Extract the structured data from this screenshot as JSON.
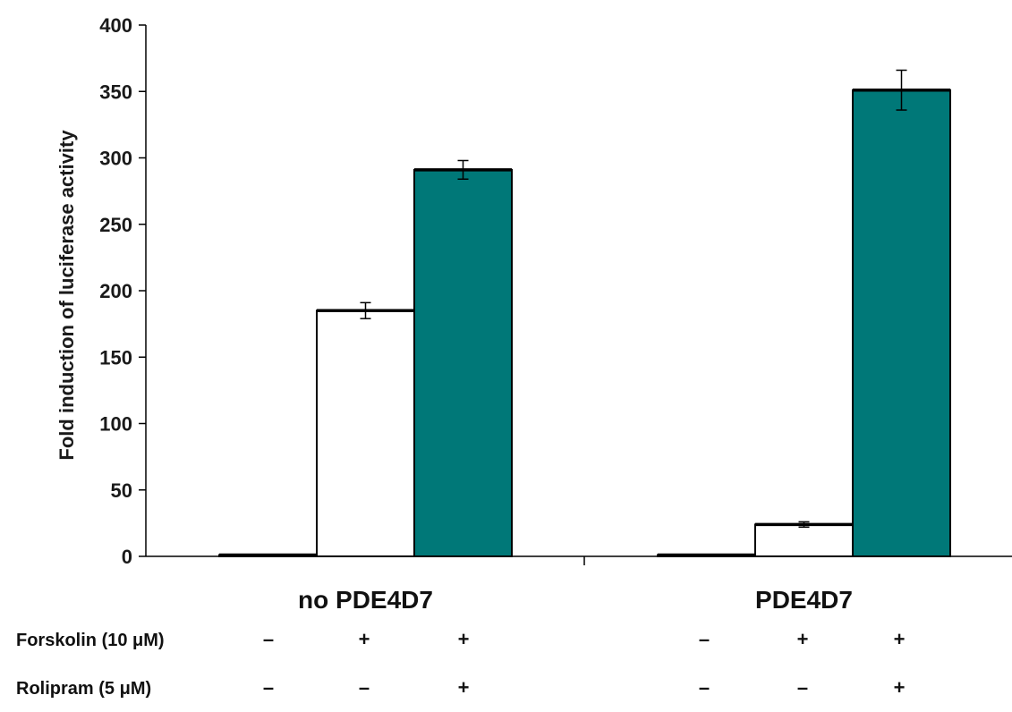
{
  "chart_data": {
    "type": "bar",
    "ylabel": "Fold induction of luciferase activity",
    "ylim": [
      0,
      400
    ],
    "yticks": [
      "0",
      "50",
      "100",
      "150",
      "200",
      "250",
      "300",
      "350",
      "400"
    ],
    "groups": [
      {
        "label": "no PDE4D7",
        "bars": [
          {
            "value": 1,
            "error": 0,
            "fill": "white"
          },
          {
            "value": 185,
            "error": 6,
            "fill": "white"
          },
          {
            "value": 291,
            "error": 7,
            "fill": "teal"
          }
        ]
      },
      {
        "label": "PDE4D7",
        "bars": [
          {
            "value": 1,
            "error": 0,
            "fill": "white"
          },
          {
            "value": 24,
            "error": 2,
            "fill": "white"
          },
          {
            "value": 351,
            "error": 15,
            "fill": "teal"
          }
        ]
      }
    ],
    "conditions": [
      {
        "label": "Forskolin (10 μM)",
        "signs": [
          "–",
          "+",
          "+",
          "–",
          "+",
          "+"
        ]
      },
      {
        "label": "Rolipram (5 μM)",
        "signs": [
          "–",
          "–",
          "+",
          "–",
          "–",
          "+"
        ]
      }
    ],
    "colors": {
      "teal": "#007878",
      "white": "#ffffff",
      "stroke": "#000000"
    },
    "grid": false,
    "legend": "none"
  }
}
